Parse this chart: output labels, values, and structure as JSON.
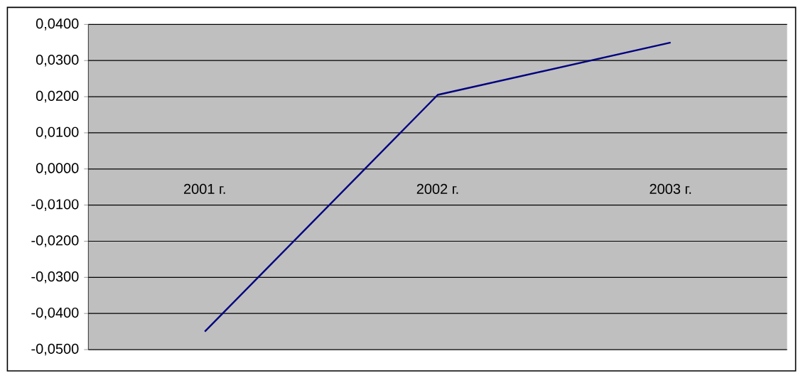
{
  "chart_data": {
    "type": "line",
    "categories": [
      "2001 г.",
      "2002 г.",
      "2003 г."
    ],
    "series": [
      {
        "color": "#000080",
        "values": [
          -0.045,
          0.0205,
          0.035
        ]
      }
    ],
    "ylim": [
      -0.05,
      0.04
    ],
    "yticks": [
      {
        "value": 0.04,
        "label": "0,0400"
      },
      {
        "value": 0.03,
        "label": "0,0300"
      },
      {
        "value": 0.02,
        "label": "0,0200"
      },
      {
        "value": 0.01,
        "label": "0,0100"
      },
      {
        "value": 0,
        "label": "0,0000"
      },
      {
        "value": -0.01,
        "label": "-0,0100"
      },
      {
        "value": -0.02,
        "label": "-0,0200"
      },
      {
        "value": -0.03,
        "label": "-0,0300"
      },
      {
        "value": -0.04,
        "label": "-0,0400"
      },
      {
        "value": -0.05,
        "label": "-0,0500"
      }
    ],
    "grid": "y",
    "marker": "none",
    "line_style": "solid"
  }
}
